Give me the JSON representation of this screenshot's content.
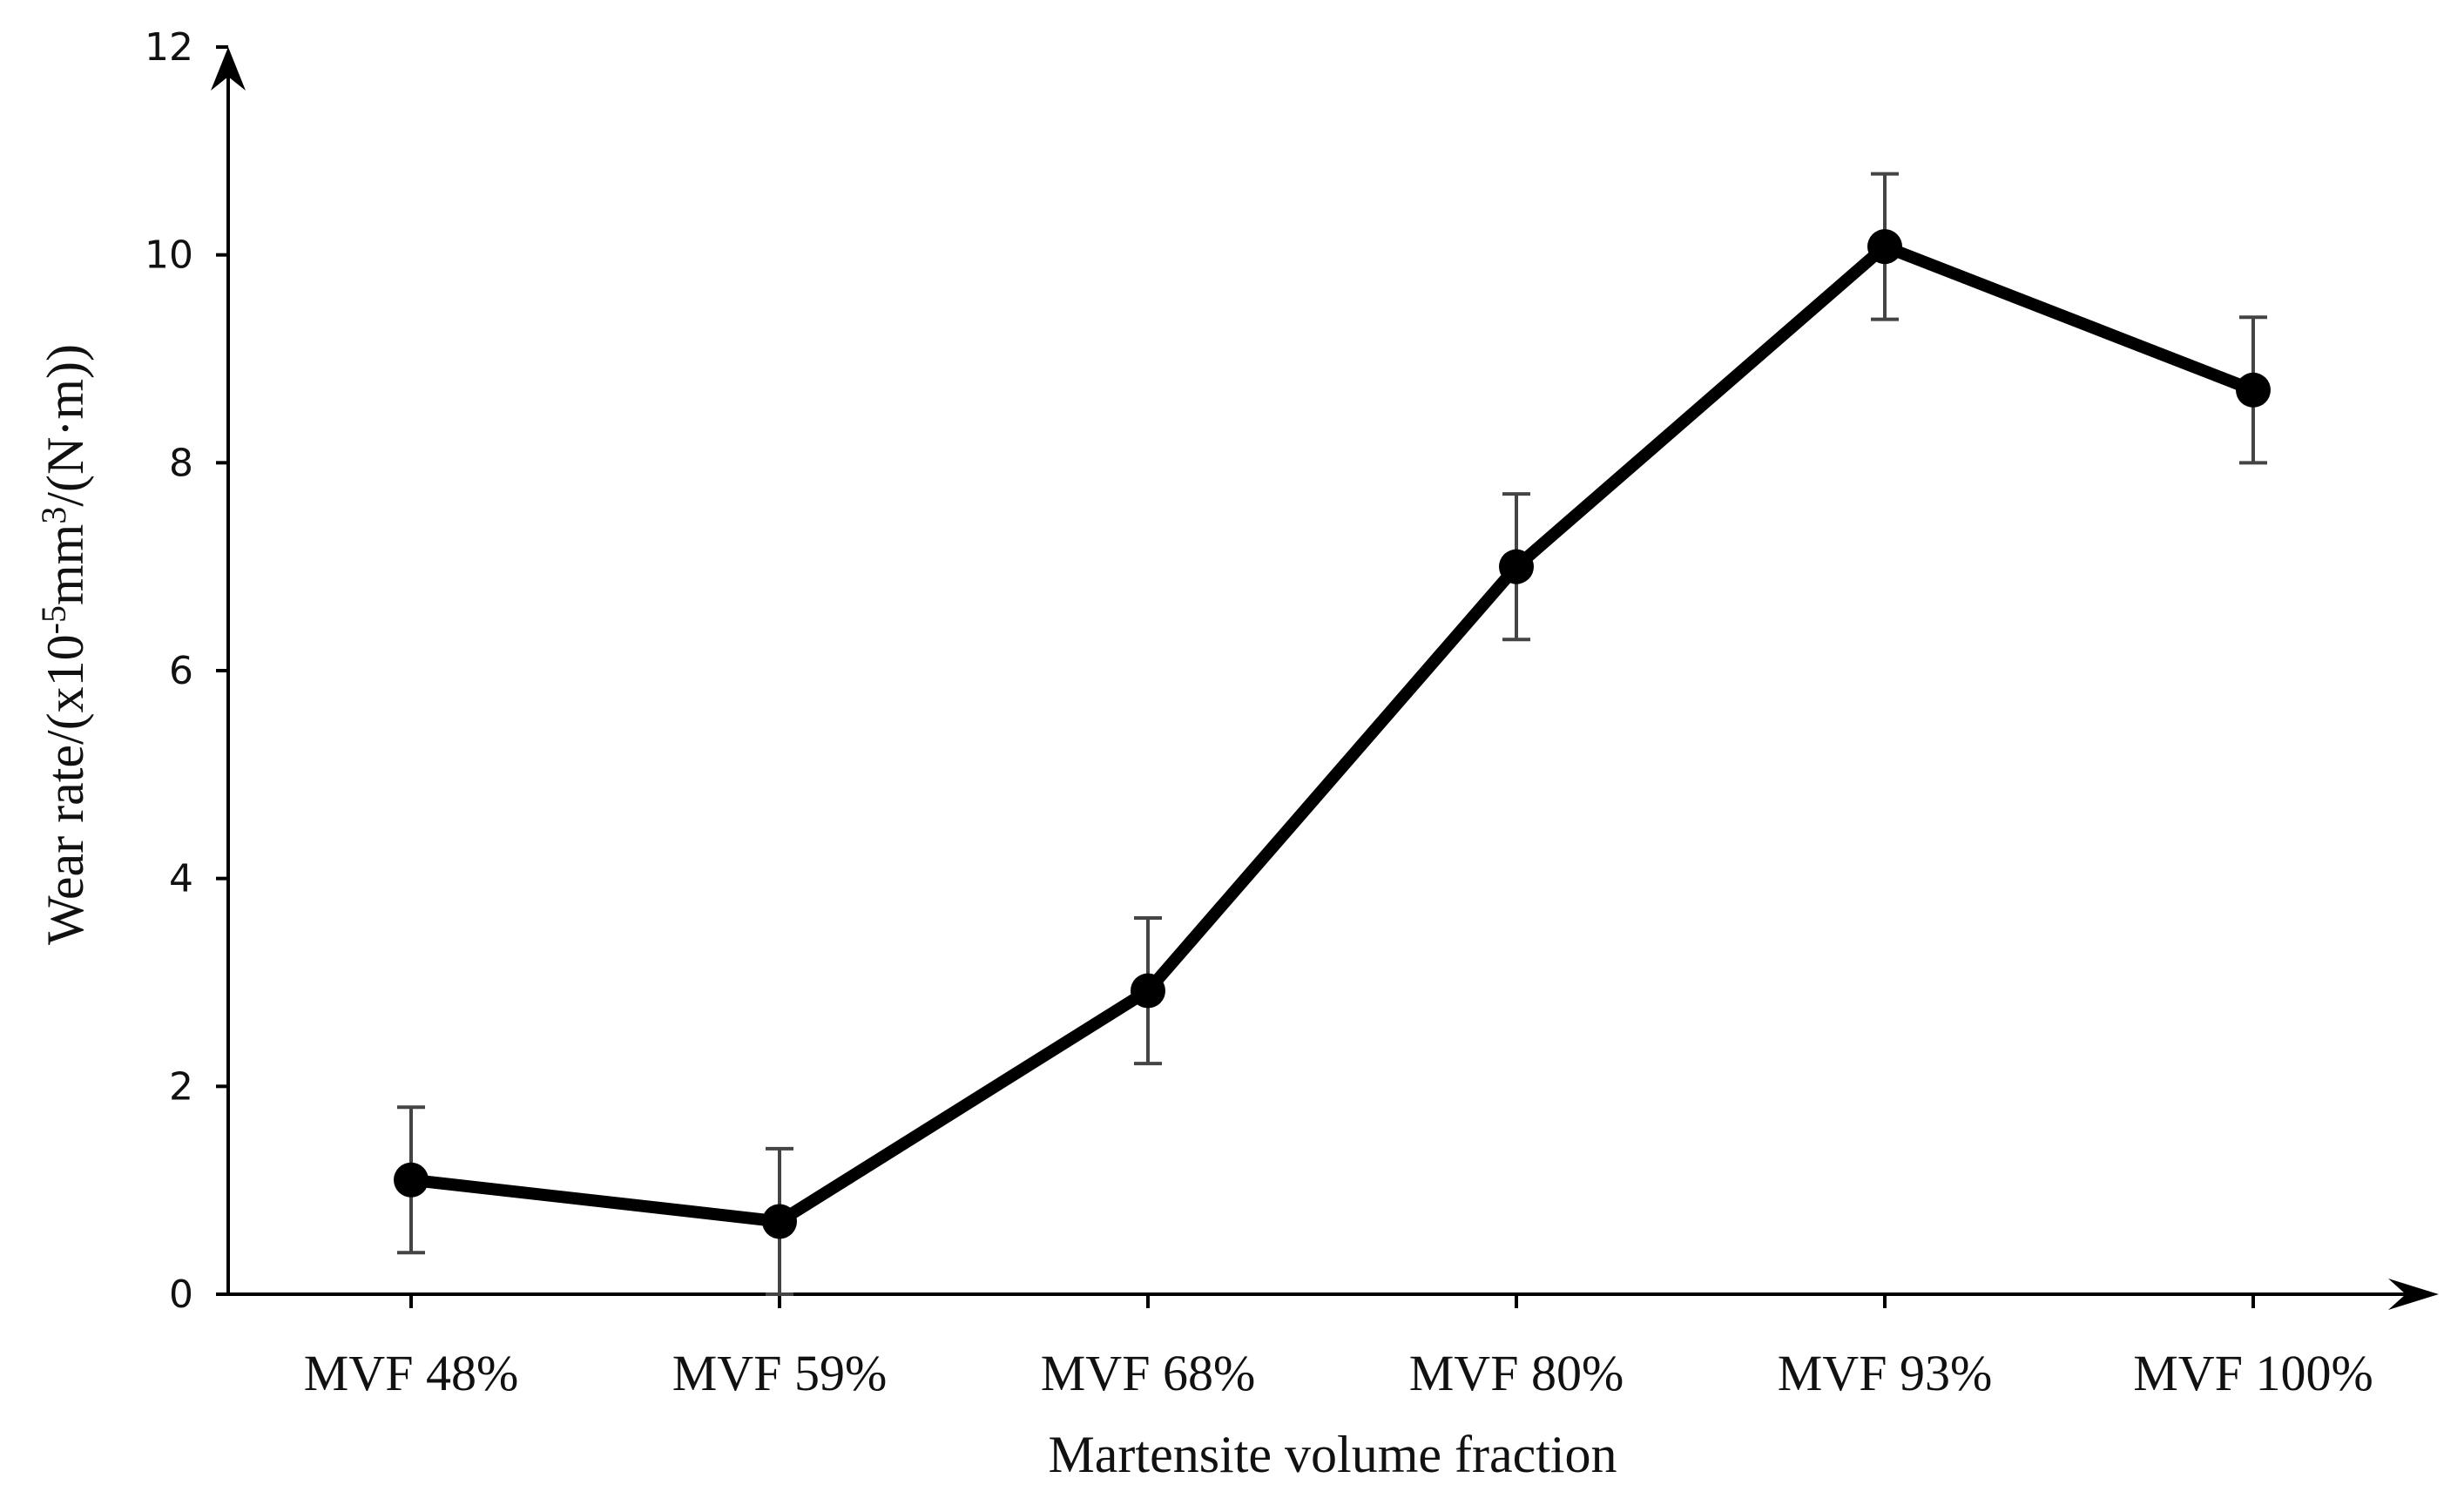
{
  "chart_data": {
    "type": "line",
    "title": "",
    "xlabel": "Martensite volume fraction",
    "ylabel": {
      "prefix": "Wear rate/(x10",
      "exp1": "-5",
      "mid": "mm",
      "exp2": "3",
      "suffix": "/(N·m))"
    },
    "ylim": [
      0,
      12
    ],
    "yticks": [
      "0",
      "2",
      "4",
      "6",
      "8",
      "10",
      "12"
    ],
    "categories": [
      "MVF 48%",
      "MVF 59%",
      "MVF 68%",
      "MVF 80%",
      "MVF 93%",
      "MVF 100%"
    ],
    "series": [
      {
        "name": "Wear rate",
        "values": [
          1.1,
          0.7,
          2.92,
          7.0,
          10.08,
          8.7
        ],
        "error": [
          0.7,
          0.7,
          0.7,
          0.7,
          0.7,
          0.7
        ]
      }
    ],
    "grid": false,
    "legend": "none"
  },
  "colors": {
    "line": "#000000",
    "errorbar": "#444444",
    "axis": "#000000"
  }
}
